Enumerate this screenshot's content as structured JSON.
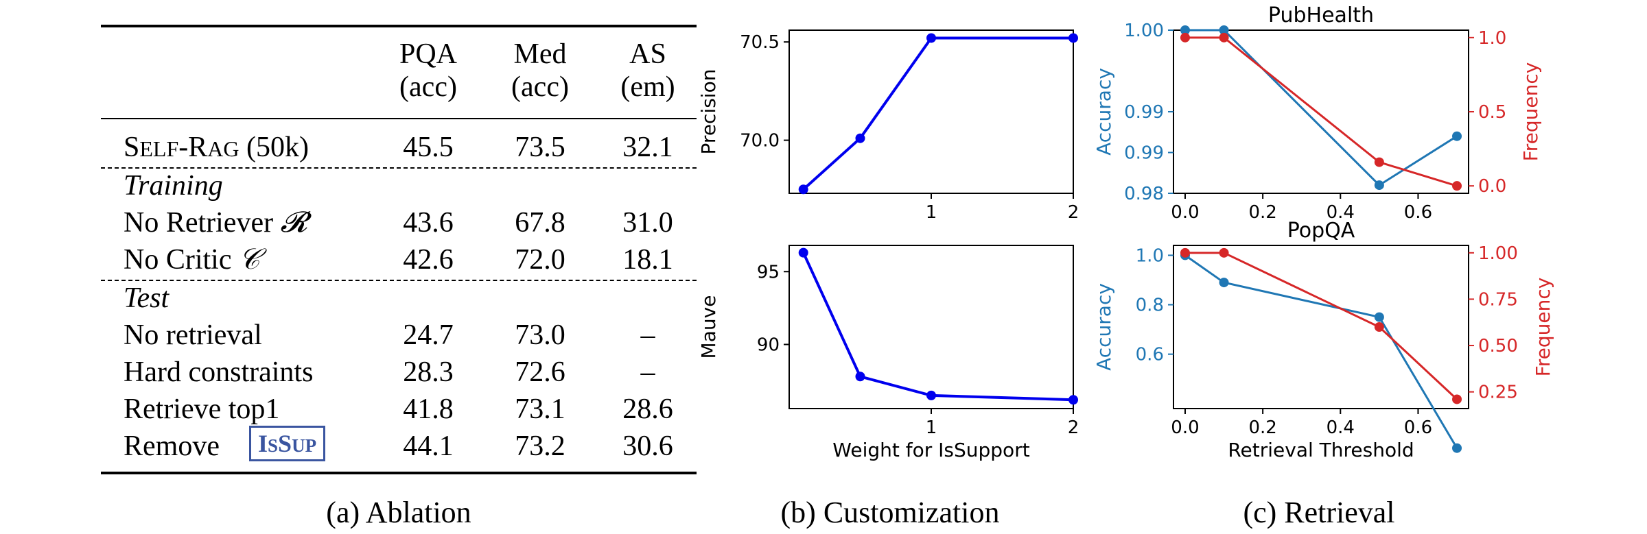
{
  "ablation": {
    "headers": {
      "pqa": [
        "PQA",
        "(acc)"
      ],
      "med": [
        "Med",
        "(acc)"
      ],
      "as": [
        "AS",
        "(em)"
      ]
    },
    "selfrag": {
      "label_parts": [
        "S",
        "ELF",
        "-R",
        "AG"
      ],
      "label_suffix": " (50k)",
      "values": [
        "45.5",
        "73.5",
        "32.1"
      ]
    },
    "training_label": "Training",
    "training_rows": [
      {
        "label": "No Retriever ",
        "symbol": "𝓡",
        "values": [
          "43.6",
          "67.8",
          "31.0"
        ]
      },
      {
        "label": "No Critic ",
        "symbol": "𝒞",
        "values": [
          "42.6",
          "72.0",
          "18.1"
        ]
      }
    ],
    "test_label": "Test",
    "test_rows": [
      {
        "label": "No retrieval",
        "values": [
          "24.7",
          "73.0",
          "–"
        ]
      },
      {
        "label": "Hard constraints",
        "values": [
          "28.3",
          "72.6",
          "–"
        ]
      },
      {
        "label": "Retrieve top1",
        "values": [
          "41.8",
          "73.1",
          "28.6"
        ]
      },
      {
        "label": "Remove",
        "values": [
          "44.1",
          "73.2",
          "30.6"
        ]
      }
    ],
    "issup_parts": [
      "I",
      "S",
      "S",
      "UP"
    ],
    "caption": "(a) Ablation"
  },
  "customization": {
    "caption": "(b) Customization",
    "xlabel": "Weight for IsSupport"
  },
  "retrieval": {
    "caption": "(c) Retrieval",
    "xlabel": "Retrieval Threshold"
  },
  "colors": {
    "blue_line": "#0000ee",
    "acc": "#1f77b4",
    "freq": "#d62728",
    "issup": "#3a55a0"
  },
  "chart_data": [
    {
      "type": "line",
      "xlabel": "",
      "ylabel": "Precision",
      "x": [
        0.1,
        0.5,
        1,
        2
      ],
      "series": [
        {
          "values": [
            69.75,
            70.01,
            70.52,
            70.52
          ]
        }
      ],
      "xticks": [
        "1",
        "2"
      ],
      "yticks": [
        "70.0",
        "70.5"
      ],
      "xlim": [
        0.0,
        2.0
      ],
      "ylim": [
        69.73,
        70.56
      ],
      "grid": false
    },
    {
      "type": "line",
      "xlabel": "Weight for IsSupport",
      "ylabel": "Mauve",
      "x": [
        0.1,
        0.5,
        1,
        2
      ],
      "series": [
        {
          "values": [
            96.3,
            87.8,
            86.5,
            86.2
          ]
        }
      ],
      "xticks": [
        "1",
        "2"
      ],
      "yticks": [
        "90",
        "95"
      ],
      "xlim": [
        0.0,
        2.0
      ],
      "ylim": [
        85.6,
        96.8
      ],
      "grid": false
    },
    {
      "type": "line",
      "title": "PubHealth",
      "xlabel": "",
      "ylabel": "Accuracy",
      "y2label": "Frequency",
      "x": [
        0.0,
        0.1,
        0.5,
        0.7
      ],
      "series": [
        {
          "name": "Accuracy",
          "axis": "left",
          "values": [
            1.0,
            1.0,
            0.981,
            0.987
          ]
        },
        {
          "name": "Frequency",
          "axis": "right",
          "values": [
            1.0,
            1.0,
            0.16,
            0.0
          ]
        }
      ],
      "xticks": [
        "0.0",
        "0.2",
        "0.4",
        "0.6"
      ],
      "yticks": [
        "0.98",
        "0.99",
        "0.99",
        "1.00"
      ],
      "y2ticks": [
        "0.0",
        "0.5",
        "1.0"
      ],
      "xlim": [
        -0.03,
        0.73
      ],
      "ylim": [
        0.98,
        1.0
      ],
      "y2lim": [
        -0.05,
        1.05
      ],
      "grid": false
    },
    {
      "type": "line",
      "title": "PopQA",
      "xlabel": "Retrieval Threshold",
      "ylabel": "Accuracy",
      "y2label": "Frequency",
      "x": [
        0.0,
        0.1,
        0.5,
        0.7
      ],
      "series": [
        {
          "name": "Accuracy",
          "axis": "left",
          "values": [
            1.0,
            0.89,
            0.75,
            0.22
          ]
        },
        {
          "name": "Frequency",
          "axis": "right",
          "values": [
            1.0,
            1.0,
            0.6,
            0.21
          ]
        }
      ],
      "xticks": [
        "0.0",
        "0.2",
        "0.4",
        "0.6"
      ],
      "yticks": [
        "0.6",
        "0.8",
        "1.0"
      ],
      "y2ticks": [
        "0.25",
        "0.50",
        "0.75",
        "1.00"
      ],
      "xlim": [
        -0.03,
        0.73
      ],
      "ylim": [
        0.38,
        1.04
      ],
      "y2lim": [
        0.16,
        1.04
      ],
      "grid": false
    }
  ]
}
